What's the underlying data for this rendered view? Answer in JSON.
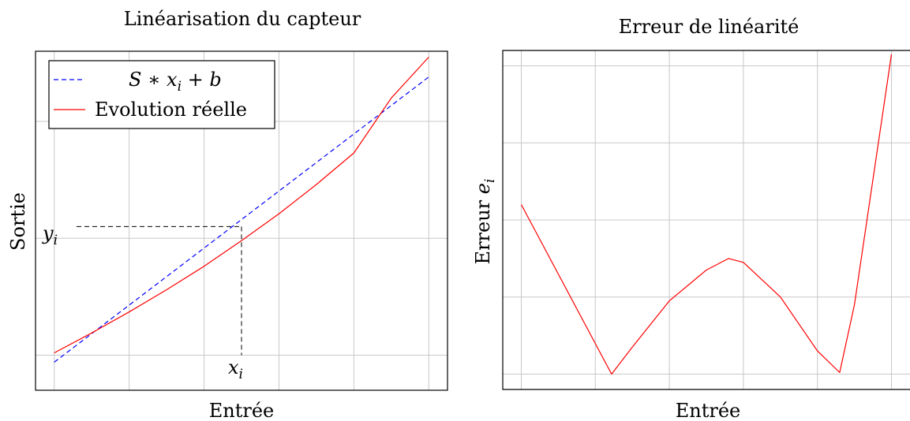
{
  "chart_data": [
    {
      "type": "line",
      "title": "Linéarisation du capteur",
      "xlabel": "Entrée",
      "ylabel": "Sortie",
      "xlim": [
        -0.25,
        5.25
      ],
      "ylim": [
        -0.3,
        2.6
      ],
      "xticks": [
        0,
        1,
        2,
        3,
        4,
        5
      ],
      "yticks": [
        0,
        1,
        2
      ],
      "grid": true,
      "tick_labels_shown": false,
      "legend": {
        "placement": "top-left",
        "entries": [
          "S ∗ x_i + b",
          "Evolution réelle"
        ]
      },
      "series": [
        {
          "name": "S ∗ x_i + b",
          "style": "dashed",
          "color": "#0000ff",
          "x": [
            0,
            5
          ],
          "y": [
            -0.06,
            2.38
          ]
        },
        {
          "name": "Evolution réelle",
          "style": "solid",
          "color": "#ff0000",
          "x": [
            0,
            0.5,
            1,
            1.5,
            2,
            2.5,
            3,
            3.5,
            4,
            4.5,
            5
          ],
          "y": [
            0.02,
            0.19,
            0.37,
            0.56,
            0.76,
            0.98,
            1.21,
            1.46,
            1.73,
            2.2,
            2.55
          ]
        }
      ],
      "annotations": {
        "xi_label": "x",
        "xi_sub": "i",
        "yi_label": "y",
        "yi_sub": "i",
        "point": {
          "x": 2.5,
          "y": 1.1
        },
        "guide_color": "#000000"
      }
    },
    {
      "type": "line",
      "title": "Erreur de linéarité",
      "xlabel": "Entrée",
      "ylabel_prefix": "Erreur",
      "ylabel_var": "e",
      "ylabel_sub": "i",
      "xlim": [
        -0.25,
        5.25
      ],
      "ylim": [
        -0.2,
        4.2
      ],
      "xticks": [
        0,
        1,
        2,
        3,
        4,
        5
      ],
      "yticks": [
        0,
        1,
        2,
        3,
        4
      ],
      "grid": true,
      "tick_labels_shown": false,
      "series": [
        {
          "color": "#ff0000",
          "style": "solid",
          "x": [
            0,
            1.22,
            1.5,
            2,
            2.5,
            2.8,
            3,
            3.5,
            4,
            4.3,
            4.5,
            5
          ],
          "y": [
            2.2,
            0.0,
            0.35,
            0.95,
            1.35,
            1.5,
            1.45,
            1.0,
            0.3,
            0.02,
            0.9,
            4.15
          ]
        }
      ]
    }
  ]
}
